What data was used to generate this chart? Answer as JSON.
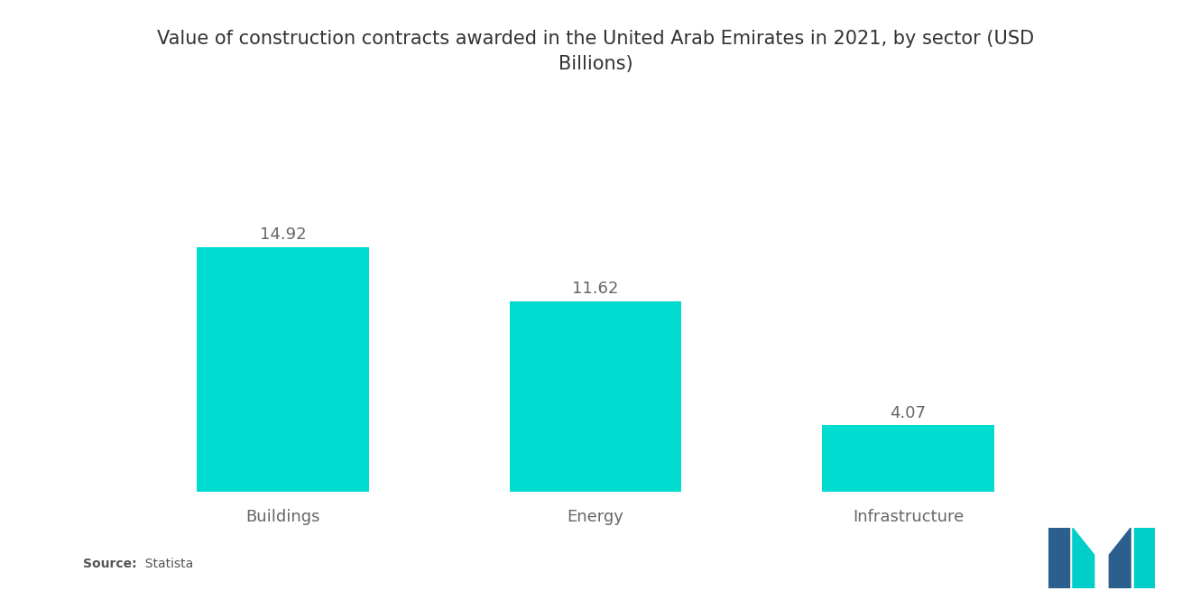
{
  "title": "Value of construction contracts awarded in the United Arab Emirates in 2021, by sector (USD\nBillions)",
  "categories": [
    "Buildings",
    "Energy",
    "Infrastructure"
  ],
  "values": [
    14.92,
    11.62,
    4.07
  ],
  "bar_color": "#00DDD0",
  "background_color": "#ffffff",
  "source_bold": "Source:",
  "source_text": "  Statista",
  "title_fontsize": 15,
  "label_fontsize": 13,
  "value_fontsize": 13,
  "ylim": [
    0,
    19
  ],
  "bar_width": 0.55,
  "text_color": "#666666",
  "logo_blue": "#2B5F8E",
  "logo_teal": "#00CEC8"
}
